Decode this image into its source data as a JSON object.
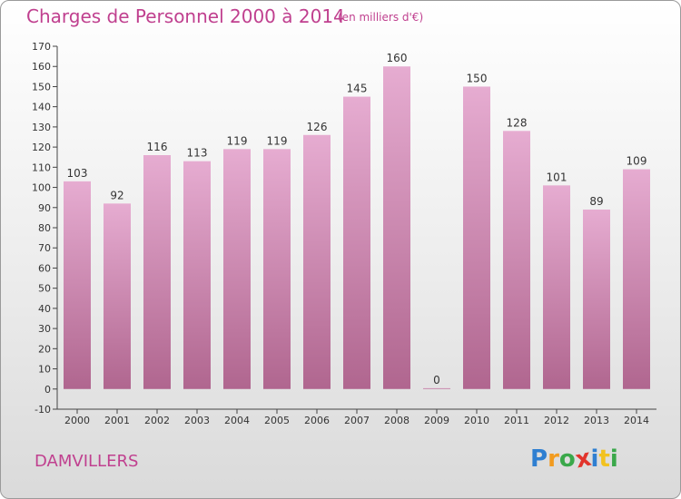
{
  "header": {
    "title": "Charges de Personnel 2000 à 2014",
    "subtitle": "(en milliers d'€)"
  },
  "footer": {
    "commune": "DAMVILLERS",
    "logo": {
      "text": "Proxiti",
      "letters": [
        {
          "char": "P",
          "color": "#2f7fd1"
        },
        {
          "char": "r",
          "color": "#f29b1f"
        },
        {
          "char": "o",
          "color": "#3aa84a"
        },
        {
          "char": "x",
          "color": "#e2342c"
        },
        {
          "char": "i",
          "color": "#2f7fd1"
        },
        {
          "char": "t",
          "color": "#f2c21f"
        },
        {
          "char": "i",
          "color": "#3aa84a"
        }
      ]
    }
  },
  "chart_data": {
    "type": "bar",
    "title": "Charges de Personnel 2000 à 2014",
    "subtitle": "(en milliers d'€)",
    "categories": [
      "2000",
      "2001",
      "2002",
      "2003",
      "2004",
      "2005",
      "2006",
      "2007",
      "2008",
      "2009",
      "2010",
      "2011",
      "2012",
      "2013",
      "2014"
    ],
    "values": [
      103,
      92,
      116,
      113,
      119,
      119,
      126,
      145,
      160,
      0,
      150,
      128,
      101,
      89,
      109
    ],
    "ylim": [
      -10,
      170
    ],
    "yticks": [
      -10,
      0,
      10,
      20,
      30,
      40,
      50,
      60,
      70,
      80,
      90,
      100,
      110,
      120,
      130,
      140,
      150,
      160,
      170
    ],
    "grid": false,
    "colors": {
      "bar_top": "#e6acd1",
      "bar_bottom": "#b0668f",
      "accent": "#c0408f"
    }
  }
}
